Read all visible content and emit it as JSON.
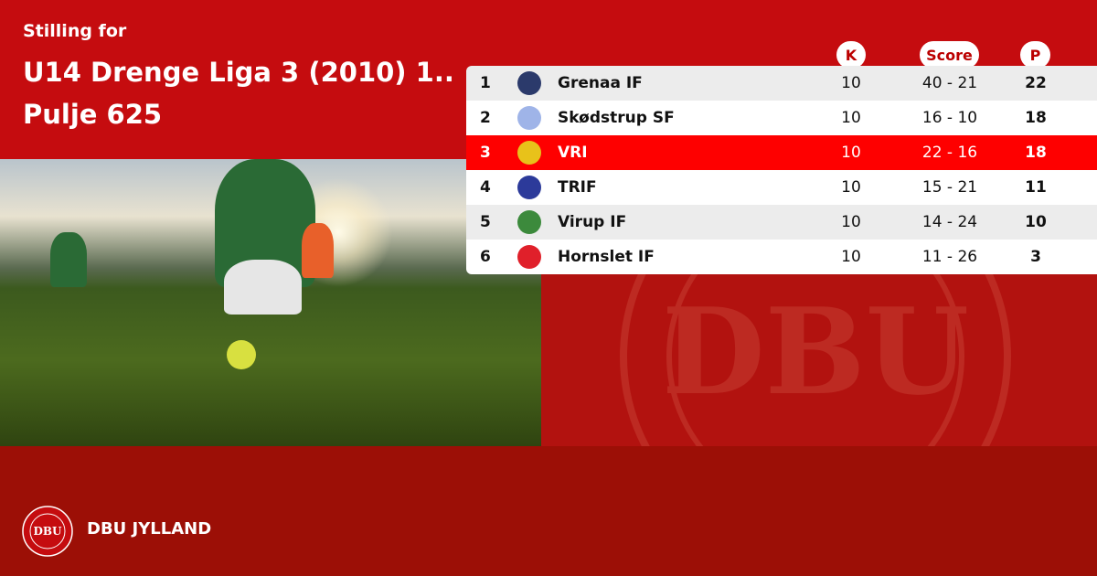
{
  "header": {
    "eyebrow": "Stilling for",
    "title_line1": "U14 Drenge Liga 3 (2010) 1..",
    "title_line2": "Pulje 625"
  },
  "table": {
    "columns": {
      "k": "K",
      "score": "Score",
      "p": "P"
    },
    "rows": [
      {
        "pos": "1",
        "team": "Grenaa IF",
        "k": "10",
        "score": "40 - 21",
        "p": "22",
        "logo_color": "#2b3a6b",
        "highlight": false
      },
      {
        "pos": "2",
        "team": "Skødstrup SF",
        "k": "10",
        "score": "16 - 10",
        "p": "18",
        "logo_color": "#9fb4e8",
        "highlight": false
      },
      {
        "pos": "3",
        "team": "VRI",
        "k": "10",
        "score": "22 - 16",
        "p": "18",
        "logo_color": "#e8c21a",
        "highlight": true
      },
      {
        "pos": "4",
        "team": "TRIF",
        "k": "10",
        "score": "15 - 21",
        "p": "11",
        "logo_color": "#2c3a9a",
        "highlight": false
      },
      {
        "pos": "5",
        "team": "Virup IF",
        "k": "10",
        "score": "14 - 24",
        "p": "10",
        "logo_color": "#3c8a3c",
        "highlight": false
      },
      {
        "pos": "6",
        "team": "Hornslet IF",
        "k": "10",
        "score": "11 - 26",
        "p": "3",
        "logo_color": "#e0202a",
        "highlight": false
      }
    ]
  },
  "footer": {
    "brand": "DBU JYLLAND",
    "badge_text": "DBU"
  },
  "colors": {
    "primary": "#c50c0f",
    "highlight": "#fe0000",
    "footer": "#9c0f06"
  }
}
